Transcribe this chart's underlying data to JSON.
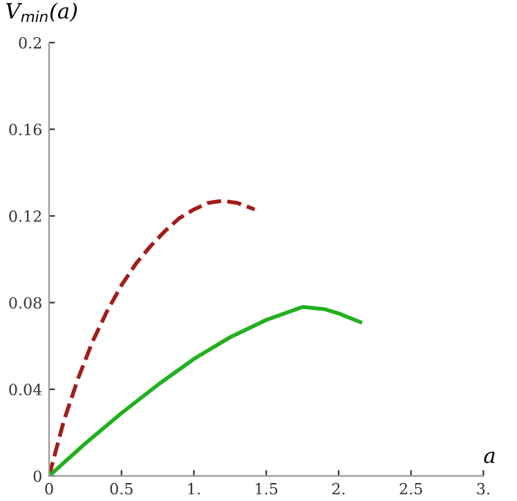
{
  "chart_data": {
    "type": "line",
    "ylabel": "V$_{min}$(a)",
    "xlabel": "a",
    "xlim": [
      0,
      3
    ],
    "ylim": [
      0,
      0.2
    ],
    "xticks": [
      0,
      0.5,
      {
        "value": 1,
        "label": "1."
      },
      1.5,
      {
        "value": 2,
        "label": "2."
      },
      2.5,
      {
        "value": 3,
        "label": "3."
      }
    ],
    "yticks": [
      0,
      0.04,
      0.08,
      0.12,
      0.16,
      0.2
    ],
    "grid": false,
    "legend": false,
    "series": [
      {
        "color": "#a31c1c",
        "line_style": "dashed",
        "x": [
          0,
          0.1,
          0.2,
          0.3,
          0.4,
          0.5,
          0.6,
          0.7,
          0.8,
          0.9,
          1.0,
          1.1,
          1.2,
          1.3,
          1.42
        ],
        "values": [
          0,
          0.025,
          0.045,
          0.062,
          0.076,
          0.088,
          0.098,
          0.106,
          0.113,
          0.119,
          0.123,
          0.126,
          0.127,
          0.126,
          0.123
        ]
      },
      {
        "color": "#22b01e",
        "line_style": "solid",
        "x": [
          0,
          0.25,
          0.5,
          0.75,
          1.0,
          1.25,
          1.5,
          1.75,
          1.9,
          2.0,
          2.15
        ],
        "values": [
          0,
          0.015,
          0.029,
          0.042,
          0.054,
          0.064,
          0.072,
          0.078,
          0.077,
          0.075,
          0.071
        ]
      }
    ]
  }
}
